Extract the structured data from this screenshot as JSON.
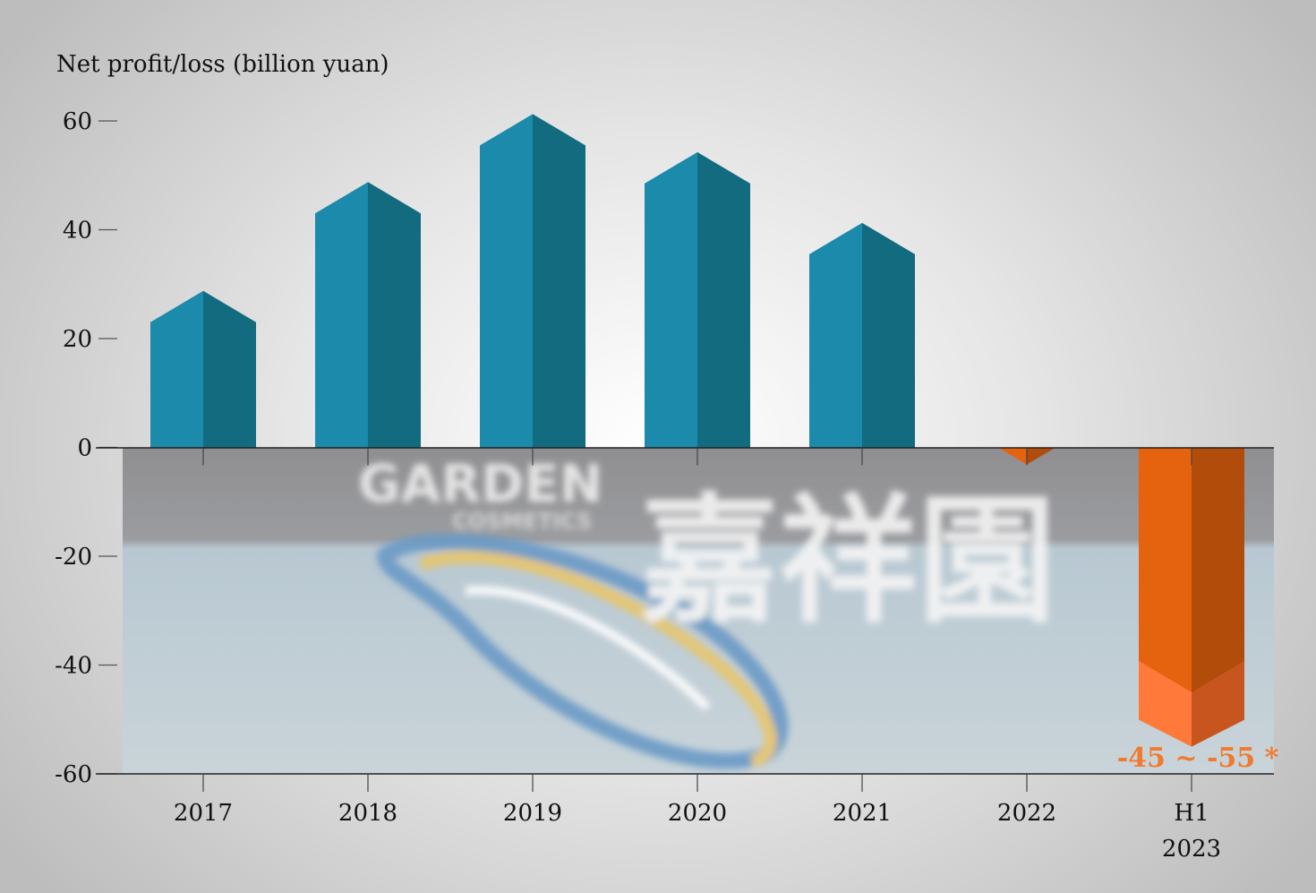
{
  "chart_data": {
    "type": "bar",
    "ylabel": "Net profit/loss (billion yuan)",
    "ylim": [
      -60,
      60
    ],
    "yticks": [
      "60",
      "40",
      "20",
      "0",
      "-20",
      "-40",
      "-60"
    ],
    "ytick_values": [
      60,
      40,
      20,
      0,
      -20,
      -40,
      -60
    ],
    "categories": [
      {
        "label": "2017",
        "value": 23
      },
      {
        "label": "2018",
        "value": 43
      },
      {
        "label": "2019",
        "value": 55.5
      },
      {
        "label": "2020",
        "value": 48.5
      },
      {
        "label": "2021",
        "value": 35.5
      },
      {
        "label": "2022",
        "value": -0.5
      },
      {
        "label": "H1\n2023",
        "value": -45,
        "value_high": -55,
        "estimate": true
      }
    ],
    "annotation": "-45 ~ -55 *",
    "colors": {
      "positive_front": "#1b8aab",
      "positive_side": "#136b80",
      "negative_front": "#e5620f",
      "negative_side": "#b24c0b",
      "range_front": "#ff7a3a",
      "range_side": "#c8551e",
      "annotation": "#f07a2e"
    },
    "background_photo_sign_text": [
      "GARDEN",
      "COSMETICS",
      "嘉祥園"
    ]
  }
}
